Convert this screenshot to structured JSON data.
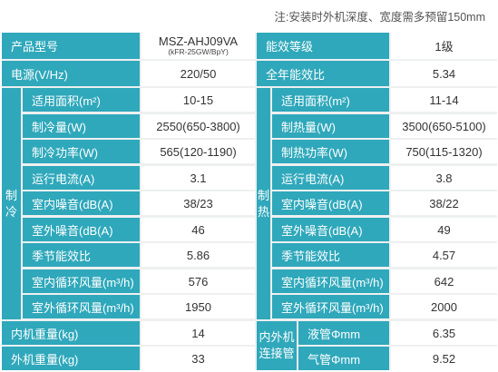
{
  "note": "注:安装时外机深度、宽度需多预留150mm",
  "model": {
    "label": "产品型号",
    "name": "MSZ-AHJ09VA",
    "sub": "(kFR-25GW/BpY)"
  },
  "energy_class": {
    "label": "能效等级",
    "value": "1级"
  },
  "power": {
    "label": "电源(V/Hz)",
    "value": "220/50"
  },
  "apf": {
    "label": "全年能效比",
    "value": "5.34"
  },
  "cooling": {
    "group_label": [
      "制",
      "冷"
    ],
    "rows": [
      {
        "label": "适用面积(m²)",
        "value": "10-15"
      },
      {
        "label": "制冷量(W)",
        "value": "2550(650-3800)"
      },
      {
        "label": "制冷功率(W)",
        "value": "565(120-1190)"
      },
      {
        "label": "运行电流(A)",
        "value": "3.1"
      },
      {
        "label": "室内噪音(dB(A)",
        "value": "38/23"
      },
      {
        "label": "室外噪音(dB(A)",
        "value": "46"
      },
      {
        "label": "季节能效比",
        "value": "5.86"
      },
      {
        "label": "室内循环风量(m³/h)",
        "value": "576"
      },
      {
        "label": "室外循环风量(m³/h)",
        "value": "1950"
      }
    ]
  },
  "heating": {
    "group_label": [
      "制",
      "热"
    ],
    "rows": [
      {
        "label": "适用面积(m²)",
        "value": "11-14"
      },
      {
        "label": "制热量(W)",
        "value": "3500(650-5100)"
      },
      {
        "label": "制热功率(W)",
        "value": "750(115-1320)"
      },
      {
        "label": "运行电流(A)",
        "value": "3.8"
      },
      {
        "label": "室内噪音(dB(A)",
        "value": "38/22"
      },
      {
        "label": "室外噪音(dB(A)",
        "value": "49"
      },
      {
        "label": "季节能效比",
        "value": "4.57"
      },
      {
        "label": "室内循环风量(m³/h)",
        "value": "642"
      },
      {
        "label": "室外循环风量(m³/h)",
        "value": "2000"
      }
    ]
  },
  "indoor_weight": {
    "label": "内机重量(kg)",
    "value": "14"
  },
  "outdoor_weight": {
    "label": "外机重量(kg)",
    "value": "33"
  },
  "pipe": {
    "group_label": [
      "内外机",
      "连接管"
    ],
    "liquid": {
      "label": "液管Φmm",
      "value": "6.35"
    },
    "gas": {
      "label": "气管Φmm",
      "value": "9.52"
    }
  }
}
